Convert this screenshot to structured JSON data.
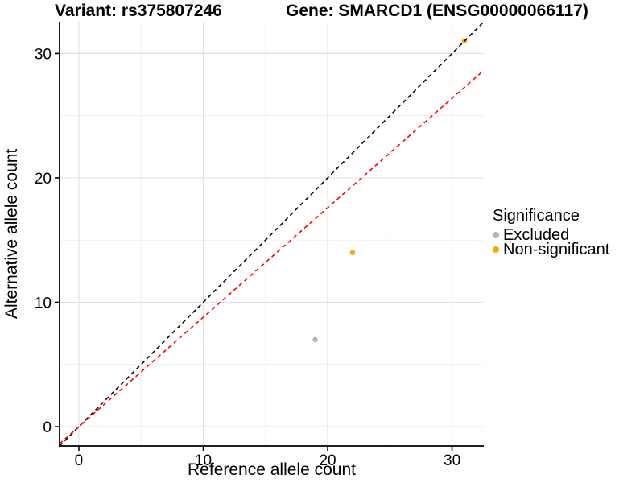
{
  "title": {
    "variant": "Variant: rs375807246",
    "gene": "Gene: SMARCD1 (ENSG00000066117)"
  },
  "chart_data": {
    "type": "scatter",
    "xlabel": "Reference allele count",
    "ylabel": "Alternative allele count",
    "xlim": [
      -1.55,
      32.55
    ],
    "ylim": [
      -1.55,
      32.55
    ],
    "x_ticks": [
      0,
      10,
      20,
      30
    ],
    "y_ticks": [
      0,
      10,
      20,
      30
    ],
    "x_minor_ticks": [
      5,
      15,
      25
    ],
    "y_minor_ticks": [
      5,
      15,
      25
    ],
    "grid": true,
    "points": [
      {
        "x": 19,
        "y": 7,
        "series": "Excluded"
      },
      {
        "x": 22,
        "y": 14,
        "series": "Non-significant"
      },
      {
        "x": 31,
        "y": 31,
        "series": "Non-significant"
      }
    ],
    "lines": [
      {
        "name": "identity-line",
        "slope": 1.0,
        "intercept": 0,
        "color": "#000000",
        "style": "dashed"
      },
      {
        "name": "expected-ratio-line",
        "slope": 0.88,
        "intercept": 0,
        "color": "#FF0000",
        "style": "dashed"
      }
    ],
    "legend": {
      "title": "Significance",
      "position": "right",
      "items": [
        {
          "label": "Excluded",
          "color": "#B4B4B4"
        },
        {
          "label": "Non-significant",
          "color": "#FFA500"
        }
      ]
    },
    "colors": {
      "grid_major": "#E3E3E3",
      "grid_minor": "#F1F1F1",
      "axis": "#000000",
      "text": "#000000",
      "background": "#FFFFFF"
    }
  }
}
